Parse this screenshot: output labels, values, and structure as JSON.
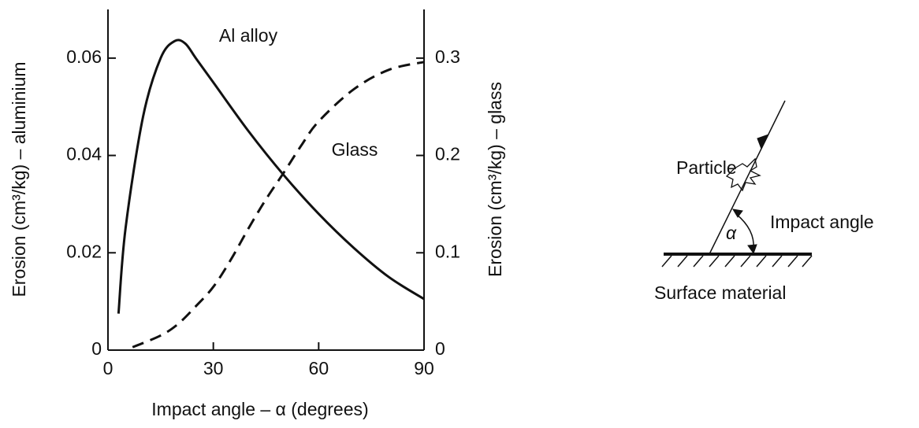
{
  "chart_data": {
    "type": "line",
    "x_label": "Impact angle – α (degrees)",
    "y_label": "Erosion (cm³/kg) – aluminium",
    "y2_label": "Erosion (cm³/kg) – glass",
    "xlim": [
      0,
      90
    ],
    "xticks": [
      0,
      30,
      60,
      90
    ],
    "ylim": [
      0,
      0.07
    ],
    "yticks": [
      0,
      0.02,
      0.04,
      0.06
    ],
    "y2lim": [
      0,
      0.35
    ],
    "y2ticks": [
      0,
      0.1,
      0.2,
      0.3
    ],
    "series": [
      {
        "name": "Al alloy",
        "color": "#111111",
        "dash": false,
        "x": [
          3,
          5,
          10,
          15,
          19,
          22,
          25,
          30,
          40,
          50,
          60,
          70,
          80,
          90
        ],
        "values": [
          0.0075,
          0.025,
          0.048,
          0.06,
          0.0635,
          0.063,
          0.06,
          0.055,
          0.045,
          0.036,
          0.028,
          0.021,
          0.015,
          0.0105
        ]
      },
      {
        "name": "Glass",
        "color": "#111111",
        "dash": true,
        "axis": "y2",
        "x": [
          7,
          15,
          20,
          25,
          30,
          35,
          40,
          45,
          50,
          55,
          60,
          70,
          80,
          90
        ],
        "values": [
          0.003,
          0.015,
          0.027,
          0.045,
          0.065,
          0.093,
          0.125,
          0.155,
          0.182,
          0.21,
          0.235,
          0.268,
          0.288,
          0.296
        ]
      }
    ]
  },
  "diagram": {
    "particle": "Particle",
    "impact_angle": "Impact angle",
    "alpha": "α",
    "surface": "Surface material"
  }
}
